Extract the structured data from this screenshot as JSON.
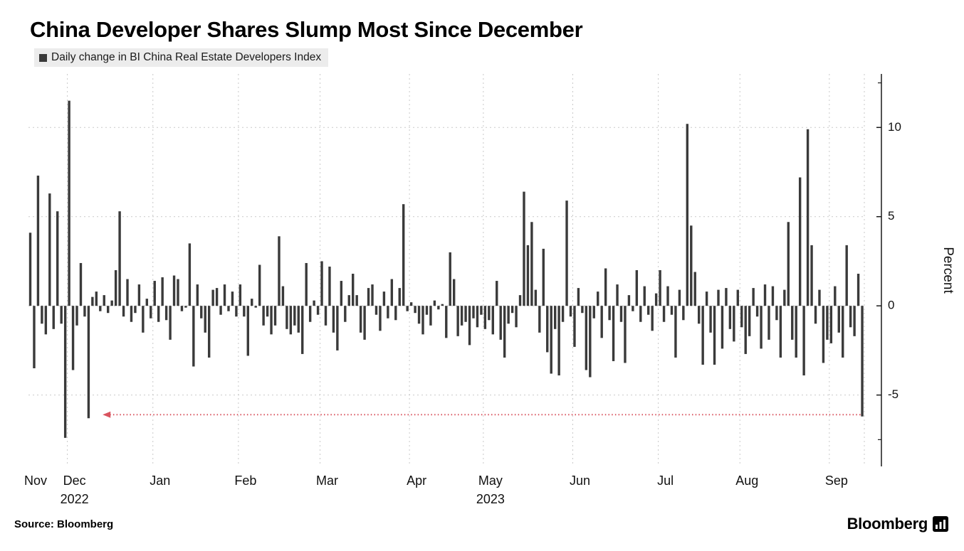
{
  "title": "China Developer Shares Slump Most Since December",
  "legend": {
    "label": "Daily change in BI China Real Estate Developers Index"
  },
  "source": "Source: Bloomberg",
  "brand": "Bloomberg",
  "colors": {
    "bar": "#3a3a3a",
    "grid": "#c9c9c9",
    "axis": "#1a1a1a",
    "text": "#111111",
    "annotation": "#d9545f",
    "legend_bg": "#ececec"
  },
  "chart_data": {
    "type": "bar",
    "title": "China Developer Shares Slump Most Since December",
    "series_name": "Daily change in BI China Real Estate Developers Index",
    "xlabel": "",
    "ylabel": "Percent",
    "ylim": [
      -9,
      13
    ],
    "yticks": [
      10,
      5,
      0,
      -5
    ],
    "yticks_minor": [
      12.5,
      -7.5
    ],
    "grid": "dashed",
    "legend_position": "top-left",
    "year_labels": [
      {
        "under_month": "Dec",
        "text": "2022"
      },
      {
        "under_month": "May",
        "text": "2023"
      }
    ],
    "months": [
      {
        "label": "Nov",
        "values": [
          4.1,
          -3.5,
          7.3,
          -1.0,
          -1.6,
          6.3,
          -1.3,
          5.3,
          -1.0,
          -7.4
        ]
      },
      {
        "label": "Dec",
        "year": "2022",
        "values": [
          11.5,
          -3.6,
          -1.1,
          2.4,
          -0.6,
          -6.3,
          0.5,
          0.8,
          -0.3,
          0.6,
          -0.4,
          0.3,
          2.0,
          5.3,
          -0.6,
          1.5,
          -0.9,
          -0.4,
          1.2,
          -1.5,
          0.4,
          -0.7
        ]
      },
      {
        "label": "Jan",
        "values": [
          1.4,
          -0.9,
          1.6,
          -0.8,
          -1.9,
          1.7,
          1.5,
          -0.3,
          -0.1,
          3.5,
          -3.4,
          1.2,
          -0.7,
          -1.5,
          -2.9,
          0.9,
          1.0,
          -0.5,
          1.2,
          -0.3,
          0.8,
          -0.6
        ]
      },
      {
        "label": "Feb",
        "values": [
          1.2,
          -0.6,
          -2.8,
          0.4,
          -0.1,
          2.3,
          -1.1,
          -0.6,
          -1.6,
          -1.1,
          3.9,
          1.1,
          -1.3,
          -1.6,
          -1.1,
          -1.5,
          -2.7,
          2.4,
          -0.9,
          0.3,
          -0.5
        ]
      },
      {
        "label": "Mar",
        "values": [
          2.5,
          -1.1,
          2.2,
          -1.5,
          -2.5,
          1.4,
          -0.9,
          0.6,
          1.8,
          0.6,
          -1.5,
          -1.9,
          1.0,
          1.2,
          -0.5,
          -1.4,
          0.8,
          -0.7,
          1.5,
          -0.8,
          1.0,
          5.7,
          -0.3
        ]
      },
      {
        "label": "Apr",
        "values": [
          0.2,
          -0.4,
          -1.0,
          -1.6,
          -0.5,
          -1.1,
          0.3,
          -0.2,
          0.1,
          -1.8,
          3.0,
          1.5,
          -1.7,
          -1.1,
          -0.9,
          -2.2,
          -0.7,
          -1.2,
          -0.5
        ]
      },
      {
        "label": "May",
        "year": "2023",
        "values": [
          -1.3,
          -0.8,
          -1.6,
          1.4,
          -1.9,
          -2.9,
          -1.0,
          -0.4,
          -1.2,
          0.6,
          6.4,
          3.4,
          4.7,
          0.9,
          -1.5,
          3.2,
          -2.6,
          -3.8,
          -1.3,
          -3.9,
          -0.9,
          5.9,
          -0.6
        ]
      },
      {
        "label": "Jun",
        "values": [
          -2.3,
          1.0,
          -0.4,
          -3.6,
          -4.0,
          -0.7,
          0.8,
          -1.8,
          2.1,
          -0.8,
          -3.1,
          1.2,
          -0.9,
          -3.2,
          0.6,
          -0.3,
          2.0,
          -0.9,
          1.1,
          -0.5,
          -1.4,
          0.7
        ]
      },
      {
        "label": "Jul",
        "values": [
          2.0,
          -0.9,
          1.1,
          -0.5,
          -2.9,
          0.9,
          -0.8,
          10.2,
          4.5,
          1.9,
          -1.0,
          -3.3,
          0.8,
          -1.5,
          -3.3,
          0.9,
          -2.4,
          1.0,
          -1.3,
          -2.0,
          0.9
        ]
      },
      {
        "label": "Aug",
        "values": [
          -1.2,
          -2.7,
          -1.7,
          1.0,
          -0.6,
          -2.4,
          1.2,
          -1.9,
          1.1,
          -0.8,
          -2.9,
          0.9,
          4.7,
          -1.9,
          -2.9,
          7.2,
          -3.9,
          9.9,
          3.4,
          -1.0,
          0.9,
          -3.2,
          -1.9
        ]
      },
      {
        "label": "Sep",
        "values": [
          -2.1,
          1.1,
          -1.5,
          -2.9,
          3.4,
          -1.2,
          -1.7,
          1.8,
          -6.2
        ]
      }
    ],
    "annotation": {
      "type": "dotted-line-arrow",
      "y": -6.1,
      "start_index": 20,
      "end_index": 214,
      "arrow_direction": "left",
      "color": "#d9545f"
    }
  }
}
